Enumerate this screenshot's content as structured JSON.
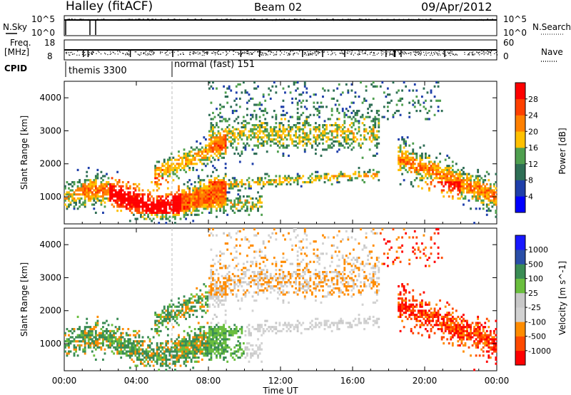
{
  "header": {
    "title": "Halley (fitACF)",
    "beam": "Beam 02",
    "date": "09/Apr/2012"
  },
  "side_labels": {
    "nsky": "N.Sky",
    "freq_line1": "Freq.",
    "freq_line2": "[MHz]",
    "cpid": "CPID",
    "nsearch": "N.Search",
    "nave": "Nave"
  },
  "strip_ticks": {
    "noise_left_top": "10^5",
    "noise_left_bottom": "10^0",
    "noise_right_top": "10^5",
    "noise_right_bottom": "10^0",
    "freq_left_top": "18",
    "freq_left_bottom": "8",
    "freq_right_top": "60",
    "freq_right_bottom": "0"
  },
  "cpid_segments": [
    {
      "label": "themis 3300",
      "start_hour": 0
    },
    {
      "label": "normal (fast) 151",
      "start_hour": 6
    }
  ],
  "colors": {
    "power": [
      "#0000ff",
      "#1f3faa",
      "#2e6e55",
      "#4f9f4f",
      "#ffc000",
      "#ff8000",
      "#ff4000",
      "#ff0000"
    ],
    "velocity": [
      "#ff0000",
      "#ff4a00",
      "#ff8c00",
      "#d2d2d2",
      "#c8c8c8",
      "#6abe3e",
      "#3a8c54",
      "#2a4ea8",
      "#1818ff"
    ]
  },
  "chart_data": [
    {
      "type": "heatmap",
      "title": "Power",
      "ylabel": "Slant Range [km]",
      "xlabel": "",
      "xlim": [
        0,
        24
      ],
      "ylim": [
        180,
        4500
      ],
      "x_ticks": [
        "00:00",
        "04:00",
        "08:00",
        "12:00",
        "16:00",
        "20:00",
        "00:00"
      ],
      "y_ticks": [
        1000,
        2000,
        3000,
        4000
      ],
      "colorbar": {
        "label": "Power [dB]",
        "ticks": [
          "4",
          "8",
          "12",
          "16",
          "20",
          "24",
          "28"
        ],
        "range": [
          0,
          32
        ]
      },
      "features": [
        {
          "x_range": [
            0,
            9
          ],
          "range_km": [
            500,
            1800
          ],
          "level": "high",
          "note": "intense echoes near 03:00-06:00"
        },
        {
          "x_range": [
            8,
            17
          ],
          "range_km": [
            1500,
            3300
          ],
          "level": "low"
        },
        {
          "x_range": [
            19,
            24
          ],
          "range_km": [
            700,
            2400
          ],
          "level": "high"
        }
      ]
    },
    {
      "type": "heatmap",
      "title": "Velocity",
      "ylabel": "Slant Range [km]",
      "xlabel": "Time UT",
      "xlim": [
        0,
        24
      ],
      "ylim": [
        180,
        4500
      ],
      "x_ticks": [
        "00:00",
        "04:00",
        "08:00",
        "12:00",
        "16:00",
        "20:00",
        "00:00"
      ],
      "y_ticks": [
        1000,
        2000,
        3000,
        4000
      ],
      "colorbar": {
        "label": "Velocity [m s^-1]",
        "ticks": [
          "1000",
          "500",
          "100",
          "25",
          "-25",
          "-100",
          "-500",
          "-1000"
        ]
      },
      "features": [
        {
          "x_range": [
            0,
            8
          ],
          "range_km": [
            500,
            1500
          ],
          "value": "positive 100-500"
        },
        {
          "x_range": [
            8,
            14
          ],
          "range_km": [
            1500,
            3300
          ],
          "value": "near zero"
        },
        {
          "x_range": [
            19,
            24
          ],
          "range_km": [
            900,
            2200
          ],
          "value": "negative -500 to -1000"
        }
      ]
    }
  ]
}
